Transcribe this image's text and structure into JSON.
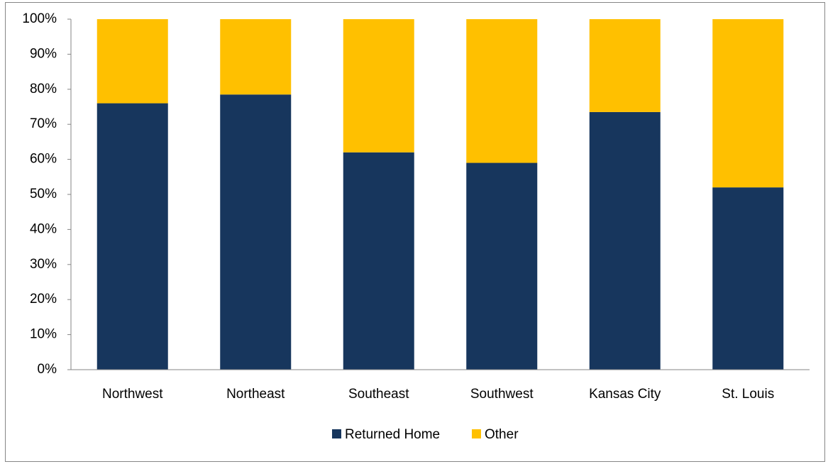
{
  "chart_data": {
    "type": "stacked_bar",
    "categories": [
      "Northwest",
      "Northeast",
      "Southeast",
      "Southwest",
      "Kansas City",
      "St. Louis"
    ],
    "series": [
      {
        "name": "Returned Home",
        "color": "#17365d",
        "values": [
          76,
          78.5,
          62,
          59,
          73.5,
          52
        ]
      },
      {
        "name": "Other",
        "color": "#ffc000",
        "values": [
          24,
          21.5,
          38,
          41,
          26.5,
          48
        ]
      }
    ],
    "ylim": [
      0,
      100
    ],
    "yticks": [
      {
        "value": 0,
        "label": "0%"
      },
      {
        "value": 10,
        "label": "10%"
      },
      {
        "value": 20,
        "label": "20%"
      },
      {
        "value": 30,
        "label": "30%"
      },
      {
        "value": 40,
        "label": "40%"
      },
      {
        "value": 50,
        "label": "50%"
      },
      {
        "value": 60,
        "label": "60%"
      },
      {
        "value": 70,
        "label": "70%"
      },
      {
        "value": 80,
        "label": "80%"
      },
      {
        "value": 90,
        "label": "90%"
      },
      {
        "value": 100,
        "label": "100%"
      }
    ],
    "legend": "bottom"
  }
}
